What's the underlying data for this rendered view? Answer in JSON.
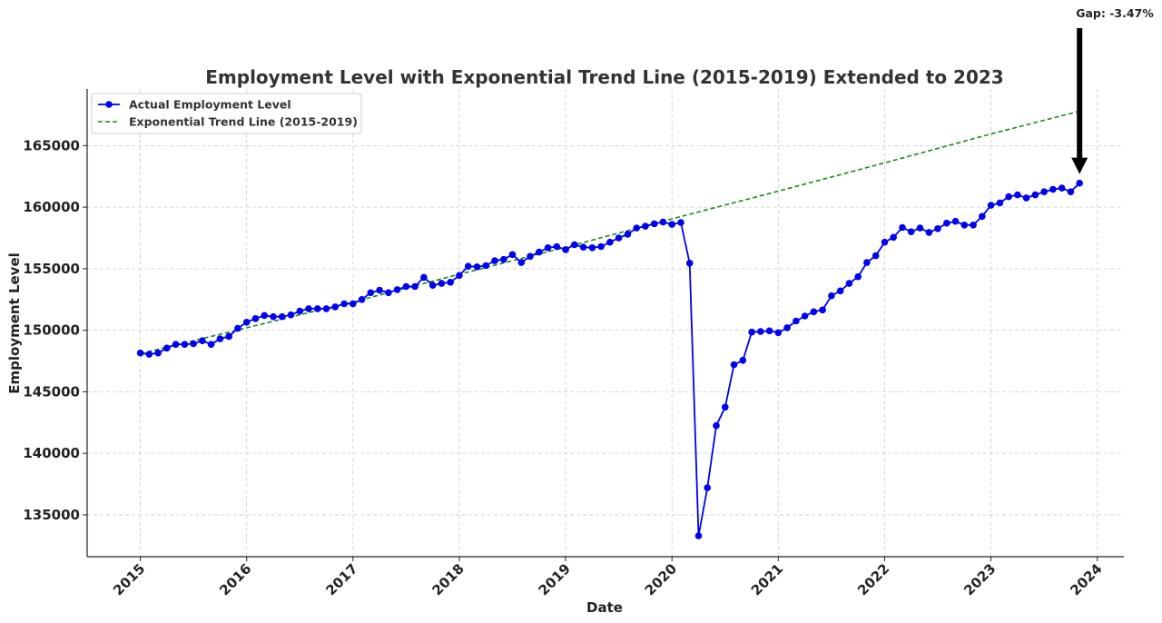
{
  "chart_data": {
    "type": "line",
    "title": "Employment Level with Exponential Trend Line (2015-2019) Extended to 2023",
    "xlabel": "Date",
    "ylabel": "Employment Level",
    "xlim": [
      "2014-07",
      "2024-04"
    ],
    "ylim": [
      131600,
      169600
    ],
    "x_ticks": [
      "2015",
      "2016",
      "2017",
      "2018",
      "2019",
      "2020",
      "2021",
      "2022",
      "2023",
      "2024"
    ],
    "y_ticks": [
      135000,
      140000,
      145000,
      150000,
      155000,
      160000,
      165000
    ],
    "grid": true,
    "legend_position": "top-left",
    "series": [
      {
        "name": "Actual Employment Level",
        "style": "solid-line-with-circle-markers",
        "color": "#0000ee",
        "x": [
          "2015-01",
          "2015-02",
          "2015-03",
          "2015-04",
          "2015-05",
          "2015-06",
          "2015-07",
          "2015-08",
          "2015-09",
          "2015-10",
          "2015-11",
          "2015-12",
          "2016-01",
          "2016-02",
          "2016-03",
          "2016-04",
          "2016-05",
          "2016-06",
          "2016-07",
          "2016-08",
          "2016-09",
          "2016-10",
          "2016-11",
          "2016-12",
          "2017-01",
          "2017-02",
          "2017-03",
          "2017-04",
          "2017-05",
          "2017-06",
          "2017-07",
          "2017-08",
          "2017-09",
          "2017-10",
          "2017-11",
          "2017-12",
          "2018-01",
          "2018-02",
          "2018-03",
          "2018-04",
          "2018-05",
          "2018-06",
          "2018-07",
          "2018-08",
          "2018-09",
          "2018-10",
          "2018-11",
          "2018-12",
          "2019-01",
          "2019-02",
          "2019-03",
          "2019-04",
          "2019-05",
          "2019-06",
          "2019-07",
          "2019-08",
          "2019-09",
          "2019-10",
          "2019-11",
          "2019-12",
          "2020-01",
          "2020-02",
          "2020-03",
          "2020-04",
          "2020-05",
          "2020-06",
          "2020-07",
          "2020-08",
          "2020-09",
          "2020-10",
          "2020-11",
          "2020-12",
          "2021-01",
          "2021-02",
          "2021-03",
          "2021-04",
          "2021-05",
          "2021-06",
          "2021-07",
          "2021-08",
          "2021-09",
          "2021-10",
          "2021-11",
          "2021-12",
          "2022-01",
          "2022-02",
          "2022-03",
          "2022-04",
          "2022-05",
          "2022-06",
          "2022-07",
          "2022-08",
          "2022-09",
          "2022-10",
          "2022-11",
          "2022-12",
          "2023-01",
          "2023-02",
          "2023-03",
          "2023-04",
          "2023-05",
          "2023-06",
          "2023-07",
          "2023-08",
          "2023-09",
          "2023-10",
          "2023-11"
        ],
        "values": [
          148150,
          148050,
          148150,
          148550,
          148850,
          148850,
          148900,
          149150,
          148850,
          149300,
          149500,
          150150,
          150650,
          150950,
          151200,
          151100,
          151100,
          151250,
          151550,
          151750,
          151750,
          151750,
          151900,
          152150,
          152150,
          152500,
          153050,
          153250,
          153050,
          153300,
          153550,
          153550,
          154300,
          153650,
          153800,
          153900,
          154450,
          155200,
          155150,
          155250,
          155650,
          155750,
          156150,
          155500,
          156000,
          156350,
          156700,
          156800,
          156550,
          156950,
          156750,
          156700,
          156800,
          157150,
          157500,
          157800,
          158300,
          158450,
          158650,
          158800,
          158600,
          158750,
          155450,
          133300,
          137200,
          142250,
          143750,
          147200,
          147550,
          149850,
          149900,
          149950,
          149800,
          150200,
          150750,
          151150,
          151500,
          151650,
          152800,
          153200,
          153800,
          154350,
          155500,
          156050,
          157150,
          157550,
          158350,
          158000,
          158300,
          157950,
          158250,
          158700,
          158850,
          158550,
          158550,
          159250,
          160150,
          160350,
          160850,
          161000,
          160750,
          161000,
          161250,
          161450,
          161550,
          161250,
          161950
        ]
      },
      {
        "name": "Exponential Trend Line (2015-2019)",
        "style": "dashed-line",
        "color": "#1a8a1a",
        "x": [
          "2015-01",
          "2016-01",
          "2017-01",
          "2018-01",
          "2019-01",
          "2020-01",
          "2021-01",
          "2022-01",
          "2023-01",
          "2023-11"
        ],
        "values": [
          148100,
          150200,
          152300,
          154550,
          156750,
          159050,
          161300,
          163600,
          165950,
          167800
        ]
      }
    ],
    "annotations": [
      {
        "text": "Gap: -3.47%",
        "arrow_to": {
          "x": "2023-11",
          "y": 161950
        },
        "arrow_color": "#000000"
      }
    ]
  }
}
